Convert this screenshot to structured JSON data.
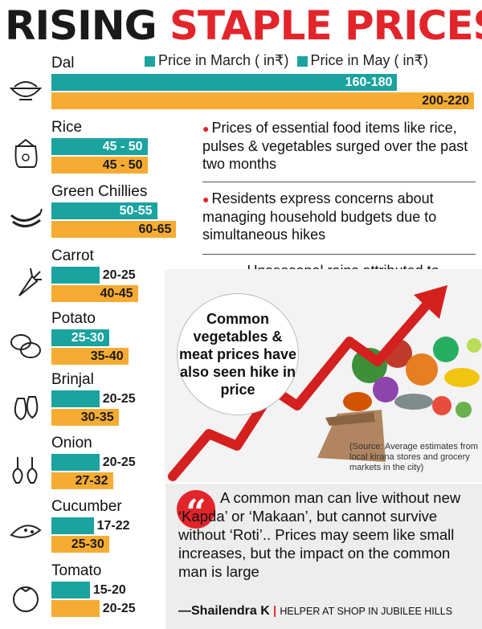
{
  "title": {
    "part1": "RISING",
    "part2": "STAPLE PRICES"
  },
  "legend": {
    "march": "Price in March ( in₹)",
    "may": "Price in May ( in₹)"
  },
  "colors": {
    "march": "#1ba3a0",
    "may": "#f6ac32",
    "accent": "#e2252b"
  },
  "chart_data": {
    "type": "bar",
    "orientation": "horizontal",
    "title": "RISING STAPLE PRICES",
    "categories": [
      "Dal",
      "Rice",
      "Green Chillies",
      "Carrot",
      "Potato",
      "Brinjal",
      "Onion",
      "Cucumber",
      "Tomato"
    ],
    "series": [
      {
        "name": "Price in March ( in₹)",
        "labels": [
          "160-180",
          "45 - 50",
          "50-55",
          "20-25",
          "25-30",
          "20-25",
          "20-25",
          "17-22",
          "15-20"
        ],
        "values": [
          180,
          50,
          55,
          25,
          30,
          25,
          25,
          22,
          20
        ]
      },
      {
        "name": "Price in May ( in₹)",
        "labels": [
          "200-220",
          "45 - 50",
          "60-65",
          "40-45",
          "35-40",
          "30-35",
          "27-32",
          "25-30",
          "20-25"
        ],
        "values": [
          220,
          50,
          65,
          45,
          40,
          35,
          32,
          30,
          25
        ]
      }
    ],
    "icons": [
      "dal-bowl-icon",
      "rice-sack-icon",
      "green-chillies-icon",
      "carrot-icon",
      "potato-icon",
      "brinjal-icon",
      "onion-icon",
      "cucumber-icon",
      "tomato-icon"
    ]
  },
  "bullets": [
    "Prices of essential food items like rice, pulses & vegetables surged over the past two months",
    "Residents express concerns about managing household budgets due to simultaneous hikes",
    "Unseasonal rains attributed to disrupting production"
  ],
  "callout": "Common vegetables & meat prices have also seen hike in price",
  "source": "(Source: Average estimates from local kirana stores and grocery markets in the city)",
  "quote": {
    "text": "A common man can live without new ‘Kapda’ or ‘Makaan’, but cannot survive without ‘Roti’.. Prices may seem like small increases, but the impact on the common man is large",
    "author": "—Shailendra K",
    "role": "HELPER AT SHOP IN JUBILEE HILLS"
  }
}
